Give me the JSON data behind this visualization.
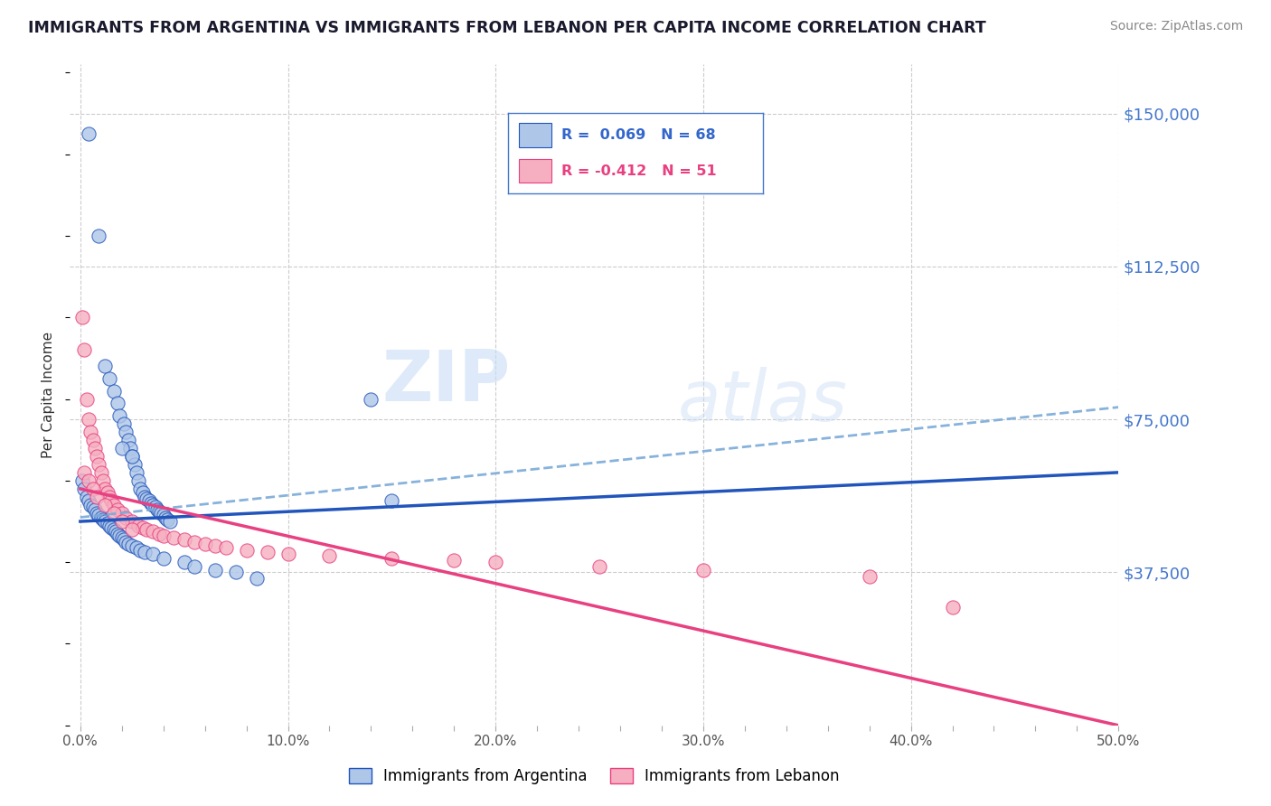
{
  "title": "IMMIGRANTS FROM ARGENTINA VS IMMIGRANTS FROM LEBANON PER CAPITA INCOME CORRELATION CHART",
  "source": "Source: ZipAtlas.com",
  "ylabel": "Per Capita Income",
  "legend_label_1": "Immigrants from Argentina",
  "legend_label_2": "Immigrants from Lebanon",
  "r1": 0.069,
  "n1": 68,
  "r2": -0.412,
  "n2": 51,
  "color_argentina": "#aec6e8",
  "color_lebanon": "#f5afc0",
  "line_color_argentina": "#2255bb",
  "line_color_lebanon": "#e84080",
  "dashed_line_color": "#7aaad8",
  "ytick_labels": [
    "$37,500",
    "$75,000",
    "$112,500",
    "$150,000"
  ],
  "ytick_values": [
    37500,
    75000,
    112500,
    150000
  ],
  "xtick_labels": [
    "0.0%",
    "",
    "",
    "",
    "",
    "10.0%",
    "",
    "",
    "",
    "",
    "20.0%",
    "",
    "",
    "",
    "",
    "30.0%",
    "",
    "",
    "",
    "",
    "40.0%",
    "",
    "",
    "",
    "",
    "50.0%"
  ],
  "xtick_values": [
    0.0,
    0.02,
    0.04,
    0.06,
    0.08,
    0.1,
    0.12,
    0.14,
    0.16,
    0.18,
    0.2,
    0.22,
    0.24,
    0.26,
    0.28,
    0.3,
    0.32,
    0.34,
    0.36,
    0.38,
    0.4,
    0.42,
    0.44,
    0.46,
    0.48,
    0.5
  ],
  "xlim": [
    -0.005,
    0.5
  ],
  "ylim": [
    0,
    162000
  ],
  "watermark_zip": "ZIP",
  "watermark_atlas": "atlas",
  "background_color": "#ffffff",
  "grid_color": "#cccccc",
  "argentina_x": [
    0.004,
    0.009,
    0.012,
    0.014,
    0.016,
    0.018,
    0.019,
    0.021,
    0.022,
    0.023,
    0.024,
    0.025,
    0.026,
    0.027,
    0.028,
    0.029,
    0.03,
    0.031,
    0.032,
    0.033,
    0.034,
    0.035,
    0.036,
    0.037,
    0.038,
    0.039,
    0.04,
    0.041,
    0.042,
    0.043,
    0.001,
    0.002,
    0.003,
    0.004,
    0.005,
    0.006,
    0.007,
    0.008,
    0.009,
    0.01,
    0.011,
    0.012,
    0.013,
    0.014,
    0.015,
    0.016,
    0.017,
    0.018,
    0.019,
    0.02,
    0.021,
    0.022,
    0.023,
    0.025,
    0.027,
    0.029,
    0.031,
    0.035,
    0.04,
    0.05,
    0.055,
    0.065,
    0.075,
    0.085,
    0.14,
    0.15,
    0.02,
    0.025
  ],
  "argentina_y": [
    145000,
    120000,
    88000,
    85000,
    82000,
    79000,
    76000,
    74000,
    72000,
    70000,
    68000,
    66000,
    64000,
    62000,
    60000,
    58000,
    57000,
    56000,
    55500,
    55000,
    54500,
    54000,
    53500,
    53000,
    52500,
    52000,
    51500,
    51000,
    50500,
    50000,
    60000,
    58000,
    56000,
    55000,
    54000,
    53500,
    53000,
    52000,
    51500,
    51000,
    50500,
    50000,
    49500,
    49000,
    48500,
    48000,
    47500,
    47000,
    46500,
    46000,
    45500,
    45000,
    44500,
    44000,
    43500,
    43000,
    42500,
    42000,
    41000,
    40000,
    39000,
    38000,
    37500,
    36000,
    80000,
    55000,
    68000,
    66000
  ],
  "lebanon_x": [
    0.001,
    0.002,
    0.003,
    0.004,
    0.005,
    0.006,
    0.007,
    0.008,
    0.009,
    0.01,
    0.011,
    0.012,
    0.013,
    0.014,
    0.015,
    0.016,
    0.018,
    0.02,
    0.022,
    0.025,
    0.028,
    0.03,
    0.032,
    0.035,
    0.038,
    0.04,
    0.045,
    0.05,
    0.055,
    0.06,
    0.065,
    0.07,
    0.08,
    0.09,
    0.1,
    0.12,
    0.15,
    0.18,
    0.2,
    0.25,
    0.3,
    0.38,
    0.42,
    0.002,
    0.004,
    0.006,
    0.008,
    0.012,
    0.016,
    0.02,
    0.025
  ],
  "lebanon_y": [
    100000,
    92000,
    80000,
    75000,
    72000,
    70000,
    68000,
    66000,
    64000,
    62000,
    60000,
    58000,
    57000,
    56000,
    55000,
    54000,
    53000,
    52000,
    51000,
    50000,
    49000,
    48500,
    48000,
    47500,
    47000,
    46500,
    46000,
    45500,
    45000,
    44500,
    44000,
    43500,
    43000,
    42500,
    42000,
    41500,
    41000,
    40500,
    40000,
    39000,
    38000,
    36500,
    29000,
    62000,
    60000,
    58000,
    56000,
    54000,
    52000,
    50000,
    48000
  ],
  "arg_line_x0": 0.0,
  "arg_line_x1": 0.5,
  "arg_line_y0": 50000,
  "arg_line_y1": 62000,
  "leb_line_x0": 0.0,
  "leb_line_x1": 0.5,
  "leb_line_y0": 58000,
  "leb_line_y1": 0,
  "dash_line_x0": 0.0,
  "dash_line_x1": 0.5,
  "dash_line_y0": 51000,
  "dash_line_y1": 78000
}
